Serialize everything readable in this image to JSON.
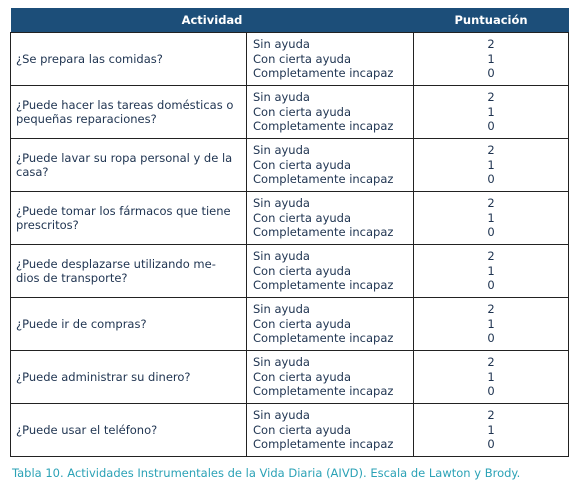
{
  "header": {
    "activity": "Actividad",
    "score": "Puntuación"
  },
  "rows": [
    {
      "question": "¿Se prepara las comidas?",
      "options": [
        {
          "label": "Sin ayuda",
          "score": 2
        },
        {
          "label": "Con cierta ayuda",
          "score": 1
        },
        {
          "label": "Completamente incapaz",
          "score": 0
        }
      ]
    },
    {
      "question": "¿Puede hacer las tareas domésticas o pequeñas reparaciones?",
      "options": [
        {
          "label": "Sin ayuda",
          "score": 2
        },
        {
          "label": "Con cierta ayuda",
          "score": 1
        },
        {
          "label": "Completamente incapaz",
          "score": 0
        }
      ]
    },
    {
      "question": "¿Puede lavar su ropa personal y de la casa?",
      "options": [
        {
          "label": "Sin ayuda",
          "score": 2
        },
        {
          "label": "Con cierta ayuda",
          "score": 1
        },
        {
          "label": "Completamente incapaz",
          "score": 0
        }
      ]
    },
    {
      "question": "¿Puede tomar los fármacos que tiene prescritos?",
      "options": [
        {
          "label": "Sin ayuda",
          "score": 2
        },
        {
          "label": "Con cierta ayuda",
          "score": 1
        },
        {
          "label": "Completamente incapaz",
          "score": 0
        }
      ]
    },
    {
      "question": "¿Puede desplazarse utilizando me-dios de transporte?",
      "options": [
        {
          "label": "Sin ayuda",
          "score": 2
        },
        {
          "label": "Con cierta ayuda",
          "score": 1
        },
        {
          "label": "Completamente incapaz",
          "score": 0
        }
      ]
    },
    {
      "question": "¿Puede ir de compras?",
      "options": [
        {
          "label": "Sin ayuda",
          "score": 2
        },
        {
          "label": "Con cierta ayuda",
          "score": 1
        },
        {
          "label": "Completamente incapaz",
          "score": 0
        }
      ]
    },
    {
      "question": "¿Puede administrar su dinero?",
      "options": [
        {
          "label": "Sin ayuda",
          "score": 2
        },
        {
          "label": "Con cierta ayuda",
          "score": 1
        },
        {
          "label": "Completamente incapaz",
          "score": 0
        }
      ]
    },
    {
      "question": "¿Puede usar el teléfono?",
      "options": [
        {
          "label": "Sin ayuda",
          "score": 2
        },
        {
          "label": "Con cierta ayuda",
          "score": 1
        },
        {
          "label": "Completamente incapaz",
          "score": 0
        }
      ]
    }
  ],
  "caption": "Tabla 10. Actividades Instrumentales de la Vida Diaria (AIVD). Escala de Lawton y Brody."
}
